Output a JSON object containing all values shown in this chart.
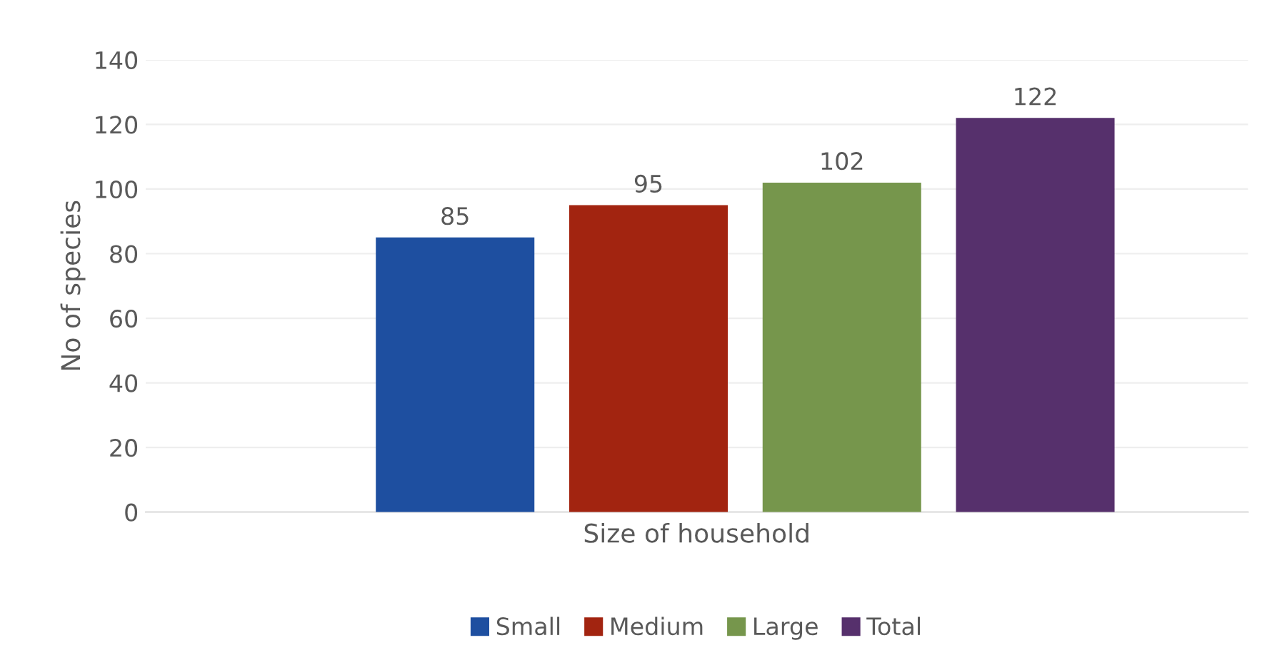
{
  "chart_data": {
    "type": "bar",
    "xlabel": "Size of household",
    "ylabel": "No of species",
    "categories": [
      null
    ],
    "series": [
      {
        "name": "Small",
        "color": "#1e4fa0",
        "values": [
          85
        ]
      },
      {
        "name": "Medium",
        "color": "#a22410",
        "values": [
          95
        ]
      },
      {
        "name": "Large",
        "color": "#76964c",
        "values": [
          102
        ]
      },
      {
        "name": "Total",
        "color": "#56306c",
        "values": [
          122
        ]
      }
    ],
    "ylim": [
      0,
      140
    ],
    "yticks": [
      0,
      20,
      40,
      60,
      80,
      100,
      120,
      140
    ],
    "grid": "y",
    "legend": "bottom",
    "data_labels": true
  }
}
